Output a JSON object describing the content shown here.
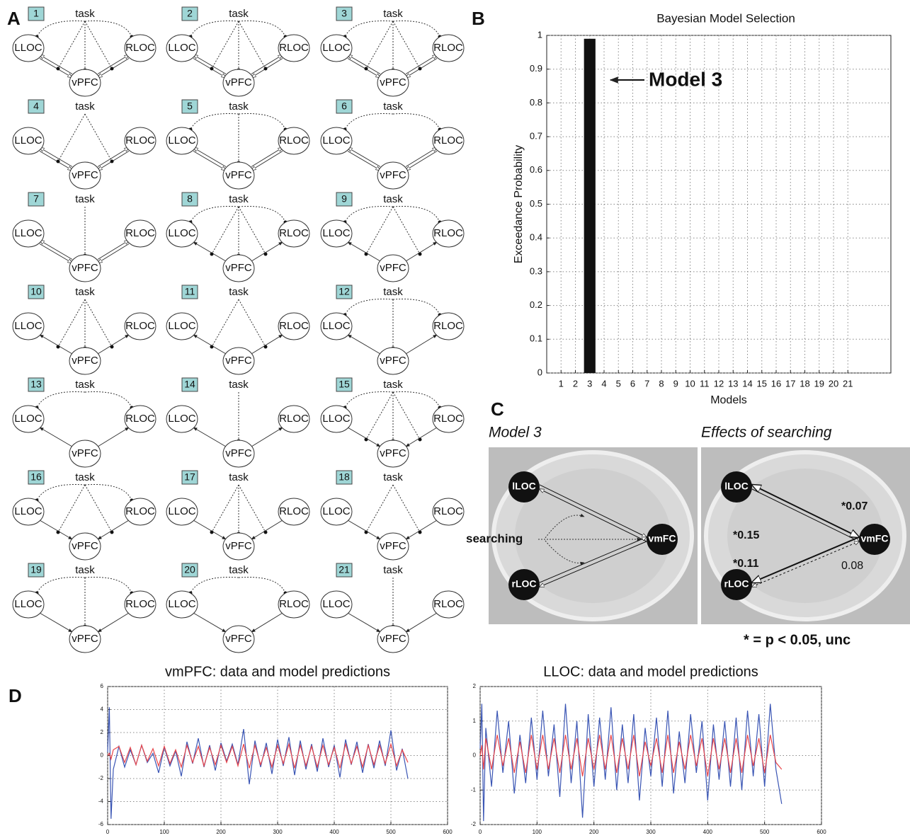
{
  "panel_labels": [
    "A",
    "B",
    "C",
    "D"
  ],
  "model_space": {
    "models": [
      "1",
      "2",
      "3",
      "4",
      "5",
      "6",
      "7",
      "8",
      "9",
      "10",
      "11",
      "12",
      "13",
      "14",
      "15",
      "16",
      "17",
      "18",
      "19",
      "20",
      "21"
    ],
    "node_labels": {
      "task": "task",
      "left": "LLOC",
      "right": "RLOC",
      "center": "vPFC"
    }
  },
  "chart_data": [
    {
      "type": "bar",
      "title": "Bayesian Model Selection",
      "x_label": "Models",
      "y_label": "Exceedance Probability",
      "annotation": "Model 3",
      "x": [
        1,
        2,
        3,
        4,
        5,
        6,
        7,
        8,
        9,
        10,
        11,
        12,
        13,
        14,
        15,
        16,
        17,
        18,
        19,
        20,
        21
      ],
      "values": [
        0,
        0,
        0.99,
        0,
        0,
        0,
        0,
        0,
        0,
        0,
        0,
        0,
        0,
        0,
        0,
        0,
        0,
        0,
        0,
        0,
        0
      ],
      "color": "#111111",
      "xlim": [
        0,
        24
      ],
      "xticks": [
        1,
        2,
        3,
        4,
        5,
        6,
        7,
        8,
        9,
        10,
        11,
        12,
        13,
        14,
        15,
        16,
        17,
        18,
        19,
        20,
        21
      ],
      "ylim": [
        0,
        1
      ],
      "yticks": [
        0,
        0.1,
        0.2,
        0.3,
        0.4,
        0.5,
        0.6,
        0.7,
        0.8,
        0.9,
        1
      ],
      "grid": true
    },
    {
      "type": "line",
      "title": "vmPFC: data and model predictions",
      "x": [
        0,
        3,
        6,
        10,
        20,
        30,
        40,
        50,
        60,
        70,
        80,
        90,
        100,
        110,
        120,
        130,
        140,
        150,
        160,
        170,
        180,
        190,
        200,
        210,
        220,
        230,
        240,
        250,
        260,
        270,
        280,
        290,
        300,
        310,
        320,
        330,
        340,
        350,
        360,
        370,
        380,
        390,
        400,
        410,
        420,
        430,
        440,
        450,
        460,
        470,
        480,
        490,
        500,
        510,
        520,
        530
      ],
      "series": [
        {
          "color": "#3a55b4",
          "values": [
            0.3,
            4.2,
            -5.5,
            -1.2,
            0.8,
            -1.0,
            0.5,
            -0.8,
            0.9,
            -0.6,
            0.2,
            -1.5,
            0.7,
            -0.9,
            0.4,
            -1.8,
            1.2,
            -0.7,
            1.5,
            -1.0,
            0.9,
            -1.3,
            1.1,
            -0.5,
            1.0,
            -0.8,
            2.3,
            -2.5,
            1.3,
            -1.0,
            1.1,
            -1.6,
            1.4,
            -0.9,
            1.6,
            -1.7,
            1.3,
            -1.2,
            1.0,
            -1.4,
            1.5,
            -1.0,
            0.9,
            -1.9,
            1.4,
            -0.8,
            1.2,
            -1.5,
            1.0,
            -1.1,
            1.3,
            -0.9,
            2.2,
            -1.3,
            0.6,
            -2.0
          ]
        },
        {
          "color": "#e8454a",
          "values": [
            0,
            0.2,
            -0.3,
            0.5,
            0.8,
            -0.6,
            0.7,
            -0.8,
            0.9,
            -0.5,
            0.6,
            -0.9,
            0.8,
            -0.7,
            0.5,
            -1.0,
            0.9,
            -0.6,
            0.8,
            -0.9,
            0.7,
            -0.8,
            0.9,
            -0.6,
            0.8,
            -0.9,
            1.0,
            -1.1,
            0.9,
            -0.8,
            0.7,
            -1.0,
            0.9,
            -0.7,
            1.0,
            -1.1,
            0.9,
            -0.9,
            0.8,
            -1.0,
            0.9,
            -0.8,
            0.7,
            -1.1,
            1.0,
            -0.7,
            0.8,
            -1.0,
            0.9,
            -0.8,
            0.9,
            -0.7,
            1.0,
            -0.9,
            0.5,
            -0.6
          ]
        }
      ],
      "xlim": [
        0,
        600
      ],
      "xticks": [
        0,
        100,
        200,
        300,
        400,
        500,
        600
      ],
      "ylim": [
        -6,
        6
      ],
      "yticks": [
        -6,
        -4,
        -2,
        0,
        2,
        4,
        6
      ],
      "grid": true
    },
    {
      "type": "line",
      "title": "LLOC: data and model predictions",
      "x": [
        0,
        3,
        6,
        10,
        20,
        30,
        40,
        50,
        60,
        70,
        80,
        90,
        100,
        110,
        120,
        130,
        140,
        150,
        160,
        170,
        180,
        190,
        200,
        210,
        220,
        230,
        240,
        250,
        260,
        270,
        280,
        290,
        300,
        310,
        320,
        330,
        340,
        350,
        360,
        370,
        380,
        390,
        400,
        410,
        420,
        430,
        440,
        450,
        460,
        470,
        480,
        490,
        500,
        510,
        520,
        530
      ],
      "series": [
        {
          "color": "#3a55b4",
          "values": [
            0.2,
            1.5,
            -1.9,
            0.8,
            -0.9,
            1.3,
            -0.5,
            1.0,
            -1.1,
            0.6,
            -0.8,
            1.1,
            -0.7,
            1.3,
            -0.6,
            0.9,
            -1.2,
            1.5,
            -0.8,
            1.0,
            -1.8,
            1.2,
            -0.9,
            1.1,
            -0.7,
            1.4,
            -1.0,
            0.9,
            -0.8,
            1.2,
            -1.3,
            0.8,
            -0.6,
            1.1,
            -0.9,
            1.3,
            -1.1,
            0.7,
            -0.8,
            1.2,
            -0.5,
            1.0,
            -1.3,
            0.9,
            -0.7,
            1.0,
            -0.9,
            1.1,
            -1.0,
            1.3,
            -0.6,
            1.2,
            -0.9,
            1.5,
            -0.4,
            -1.4
          ]
        },
        {
          "color": "#e8454a",
          "values": [
            0,
            0.3,
            -0.4,
            0.5,
            -0.4,
            0.6,
            -0.3,
            0.5,
            -0.5,
            0.4,
            -0.5,
            0.6,
            -0.4,
            0.6,
            -0.4,
            0.5,
            -0.5,
            0.6,
            -0.4,
            0.5,
            -0.6,
            0.5,
            -0.4,
            0.6,
            -0.4,
            0.6,
            -0.5,
            0.5,
            -0.4,
            0.6,
            -0.6,
            0.4,
            -0.3,
            0.5,
            -0.5,
            0.6,
            -0.5,
            0.4,
            -0.4,
            0.6,
            -0.3,
            0.5,
            -0.6,
            0.5,
            -0.4,
            0.5,
            -0.5,
            0.5,
            -0.5,
            0.6,
            -0.3,
            0.5,
            -0.5,
            0.6,
            -0.2,
            -0.4
          ]
        }
      ],
      "xlim": [
        0,
        600
      ],
      "xticks": [
        0,
        100,
        200,
        300,
        400,
        500,
        600
      ],
      "ylim": [
        -2,
        2
      ],
      "yticks": [
        -2,
        -1,
        0,
        1,
        2
      ],
      "grid": true
    }
  ],
  "model3_panel": {
    "titles": [
      "Model 3",
      "Effects of searching"
    ],
    "nodes": {
      "left_top": "lLOC",
      "left_bottom": "rLOC",
      "right": "vmFC"
    },
    "input": "searching",
    "effects": [
      "*0.15",
      "*0.07",
      "*0.11",
      "0.08"
    ],
    "footnote": "* = p < 0.05, unc"
  }
}
